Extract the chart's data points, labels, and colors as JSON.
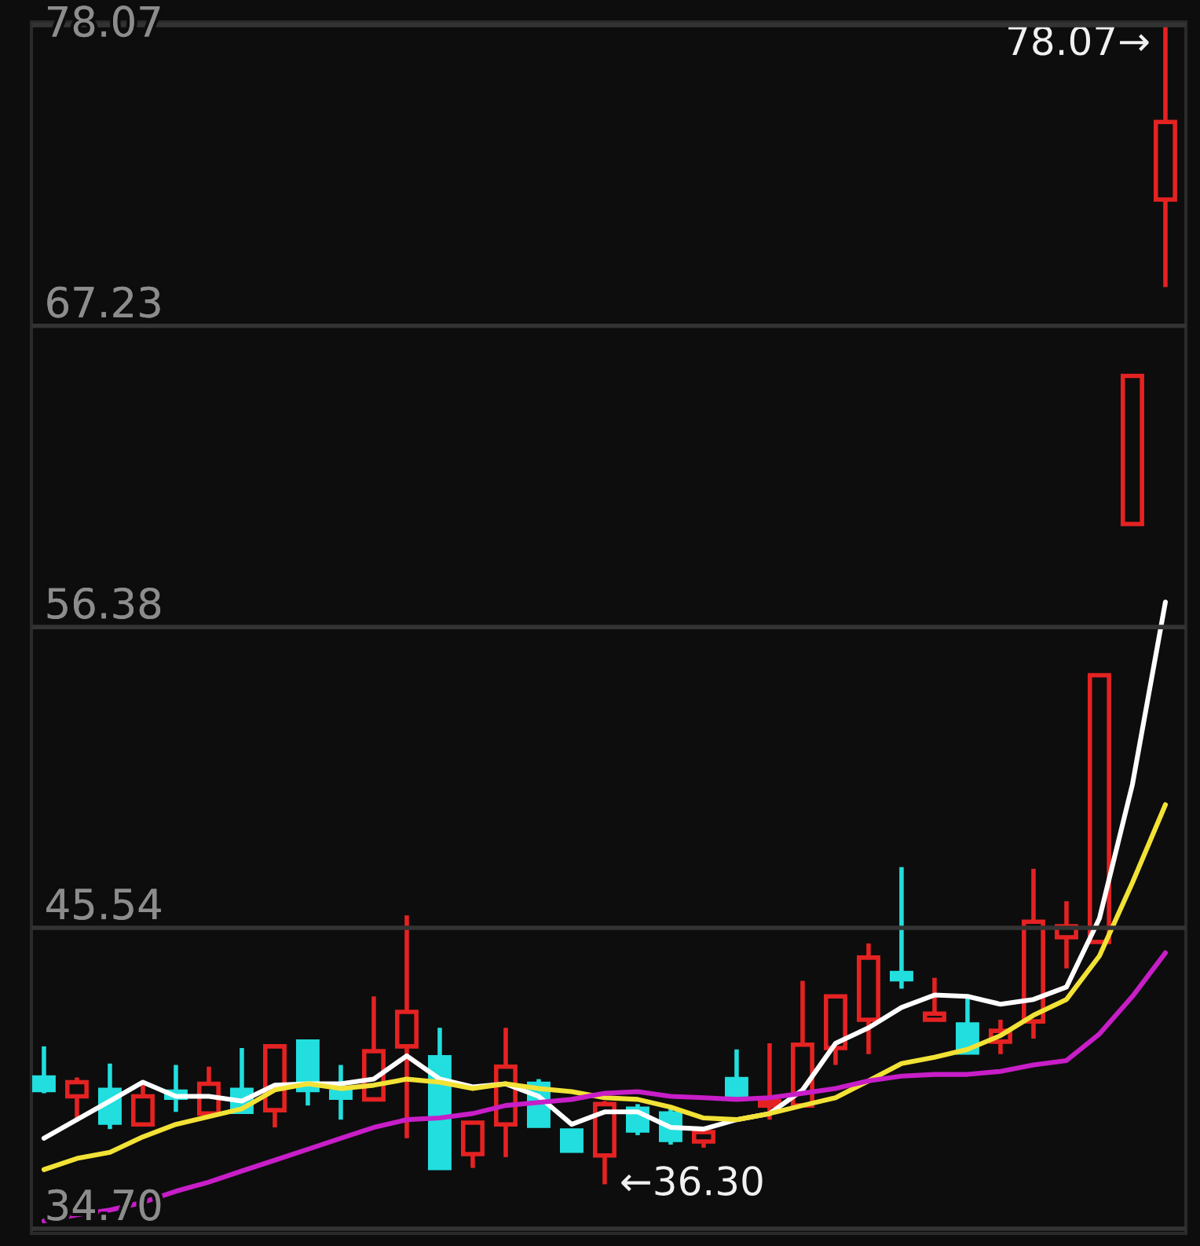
{
  "chart_data": {
    "type": "candlestick",
    "categories": [
      null,
      null,
      null,
      null,
      null,
      null,
      null,
      null,
      null,
      null,
      null,
      null,
      null,
      null,
      null,
      null,
      null,
      null,
      null,
      null,
      null,
      null,
      null,
      null,
      null,
      null,
      null,
      null,
      null,
      null,
      null,
      null,
      null,
      null,
      null
    ],
    "ohlc": [
      [
        40.15,
        41.27,
        39.58,
        39.7
      ],
      [
        39.47,
        40.15,
        38.57,
        39.98
      ],
      [
        39.7,
        40.65,
        38.29,
        38.52
      ],
      [
        38.46,
        39.98,
        38.46,
        39.47
      ],
      [
        39.64,
        40.6,
        38.91,
        39.42
      ],
      [
        38.85,
        40.54,
        38.85,
        39.92
      ],
      [
        39.7,
        41.21,
        38.91,
        38.91
      ],
      [
        38.97,
        41.27,
        38.35,
        41.27
      ],
      [
        41.44,
        41.44,
        39.14,
        39.7
      ],
      [
        39.64,
        40.6,
        38.63,
        39.42
      ],
      [
        39.36,
        43.07,
        39.36,
        41.1
      ],
      [
        41.27,
        45.99,
        37.96,
        42.51
      ],
      [
        40.88,
        41.94,
        36.89,
        36.89
      ],
      [
        37.39,
        38.57,
        36.89,
        38.52
      ],
      [
        38.46,
        41.94,
        37.28,
        40.54
      ],
      [
        39.92,
        40.09,
        38.41,
        38.41
      ],
      [
        38.24,
        38.24,
        37.45,
        37.51
      ],
      [
        37.34,
        39.3,
        36.3,
        39.19
      ],
      [
        39.02,
        39.19,
        38.07,
        38.24
      ],
      [
        38.85,
        39.08,
        37.73,
        37.9
      ],
      [
        37.84,
        38.18,
        37.62,
        38.18
      ],
      [
        40.09,
        41.16,
        39.42,
        39.53
      ],
      [
        39.14,
        41.38,
        38.63,
        39.3
      ],
      [
        39.14,
        43.63,
        39.14,
        41.33
      ],
      [
        41.21,
        43.07,
        40.6,
        43.07
      ],
      [
        42.23,
        44.98,
        40.99,
        44.47
      ],
      [
        43.91,
        47.73,
        43.35,
        43.69
      ],
      [
        42.23,
        43.74,
        42.23,
        42.45
      ],
      [
        42.06,
        43.07,
        41.05,
        41.05
      ],
      [
        41.44,
        42.23,
        40.99,
        41.83
      ],
      [
        42.17,
        47.67,
        41.55,
        45.76
      ],
      [
        45.2,
        46.5,
        44.08,
        45.6
      ],
      [
        45.03,
        54.64,
        45.03,
        54.64
      ],
      [
        60.09,
        65.43,
        60.09,
        65.43
      ],
      [
        71.78,
        78.07,
        68.63,
        74.58
      ]
    ],
    "colors": [
      "#22dede",
      "#e52222",
      "#22dede",
      "#e52222",
      "#22dede",
      "#e52222",
      "#22dede",
      "#e52222",
      "#22dede",
      "#22dede",
      "#e52222",
      "#e52222",
      "#22dede",
      "#e52222",
      "#e52222",
      "#22dede",
      "#22dede",
      "#e52222",
      "#22dede",
      "#22dede",
      "#e52222",
      "#22dede",
      "#e52222",
      "#e52222",
      "#e52222",
      "#e52222",
      "#22dede",
      "#e52222",
      "#22dede",
      "#e52222",
      "#e52222",
      "#e52222",
      "#e52222",
      "#e52222",
      "#e52222"
    ],
    "series": [
      {
        "type": "line",
        "color": "#ffffff",
        "values": [
          37.96,
          38.63,
          39.3,
          39.98,
          39.47,
          39.47,
          39.3,
          39.87,
          39.92,
          39.92,
          40.09,
          40.93,
          40.09,
          39.81,
          39.92,
          39.47,
          38.46,
          38.91,
          38.91,
          38.35,
          38.29,
          38.63,
          38.85,
          39.7,
          41.38,
          41.94,
          42.67,
          43.12,
          43.07,
          42.79,
          42.96,
          43.41,
          45.88,
          50.71,
          57.28
        ]
      },
      {
        "type": "line",
        "color": "#f2e236",
        "values": [
          36.83,
          37.23,
          37.45,
          38.01,
          38.46,
          38.74,
          39.02,
          39.7,
          39.92,
          39.75,
          39.87,
          40.09,
          39.98,
          39.75,
          39.92,
          39.75,
          39.64,
          39.42,
          39.36,
          39.08,
          38.69,
          38.63,
          38.85,
          39.14,
          39.42,
          40.03,
          40.65,
          40.88,
          41.16,
          41.66,
          42.39,
          42.96,
          44.53,
          47.17,
          49.98
        ]
      },
      {
        "type": "line",
        "color": "#c81ec8",
        "values": [
          34.98,
          35.2,
          35.37,
          35.65,
          36.05,
          36.38,
          36.78,
          37.17,
          37.56,
          37.96,
          38.35,
          38.63,
          38.69,
          38.85,
          39.14,
          39.25,
          39.36,
          39.58,
          39.64,
          39.47,
          39.42,
          39.36,
          39.42,
          39.58,
          39.75,
          40.03,
          40.2,
          40.26,
          40.26,
          40.37,
          40.6,
          40.76,
          41.72,
          43.07,
          44.64
        ]
      }
    ],
    "ylim": [
      34.53,
      78.18
    ],
    "yticks": [
      {
        "value": 34.7,
        "label": "34.70"
      },
      45.54,
      56.38,
      67.23,
      78.07
    ],
    "grid": "y",
    "tick_labels": "y",
    "annotations": [
      "78.07→",
      "←36.30"
    ]
  }
}
